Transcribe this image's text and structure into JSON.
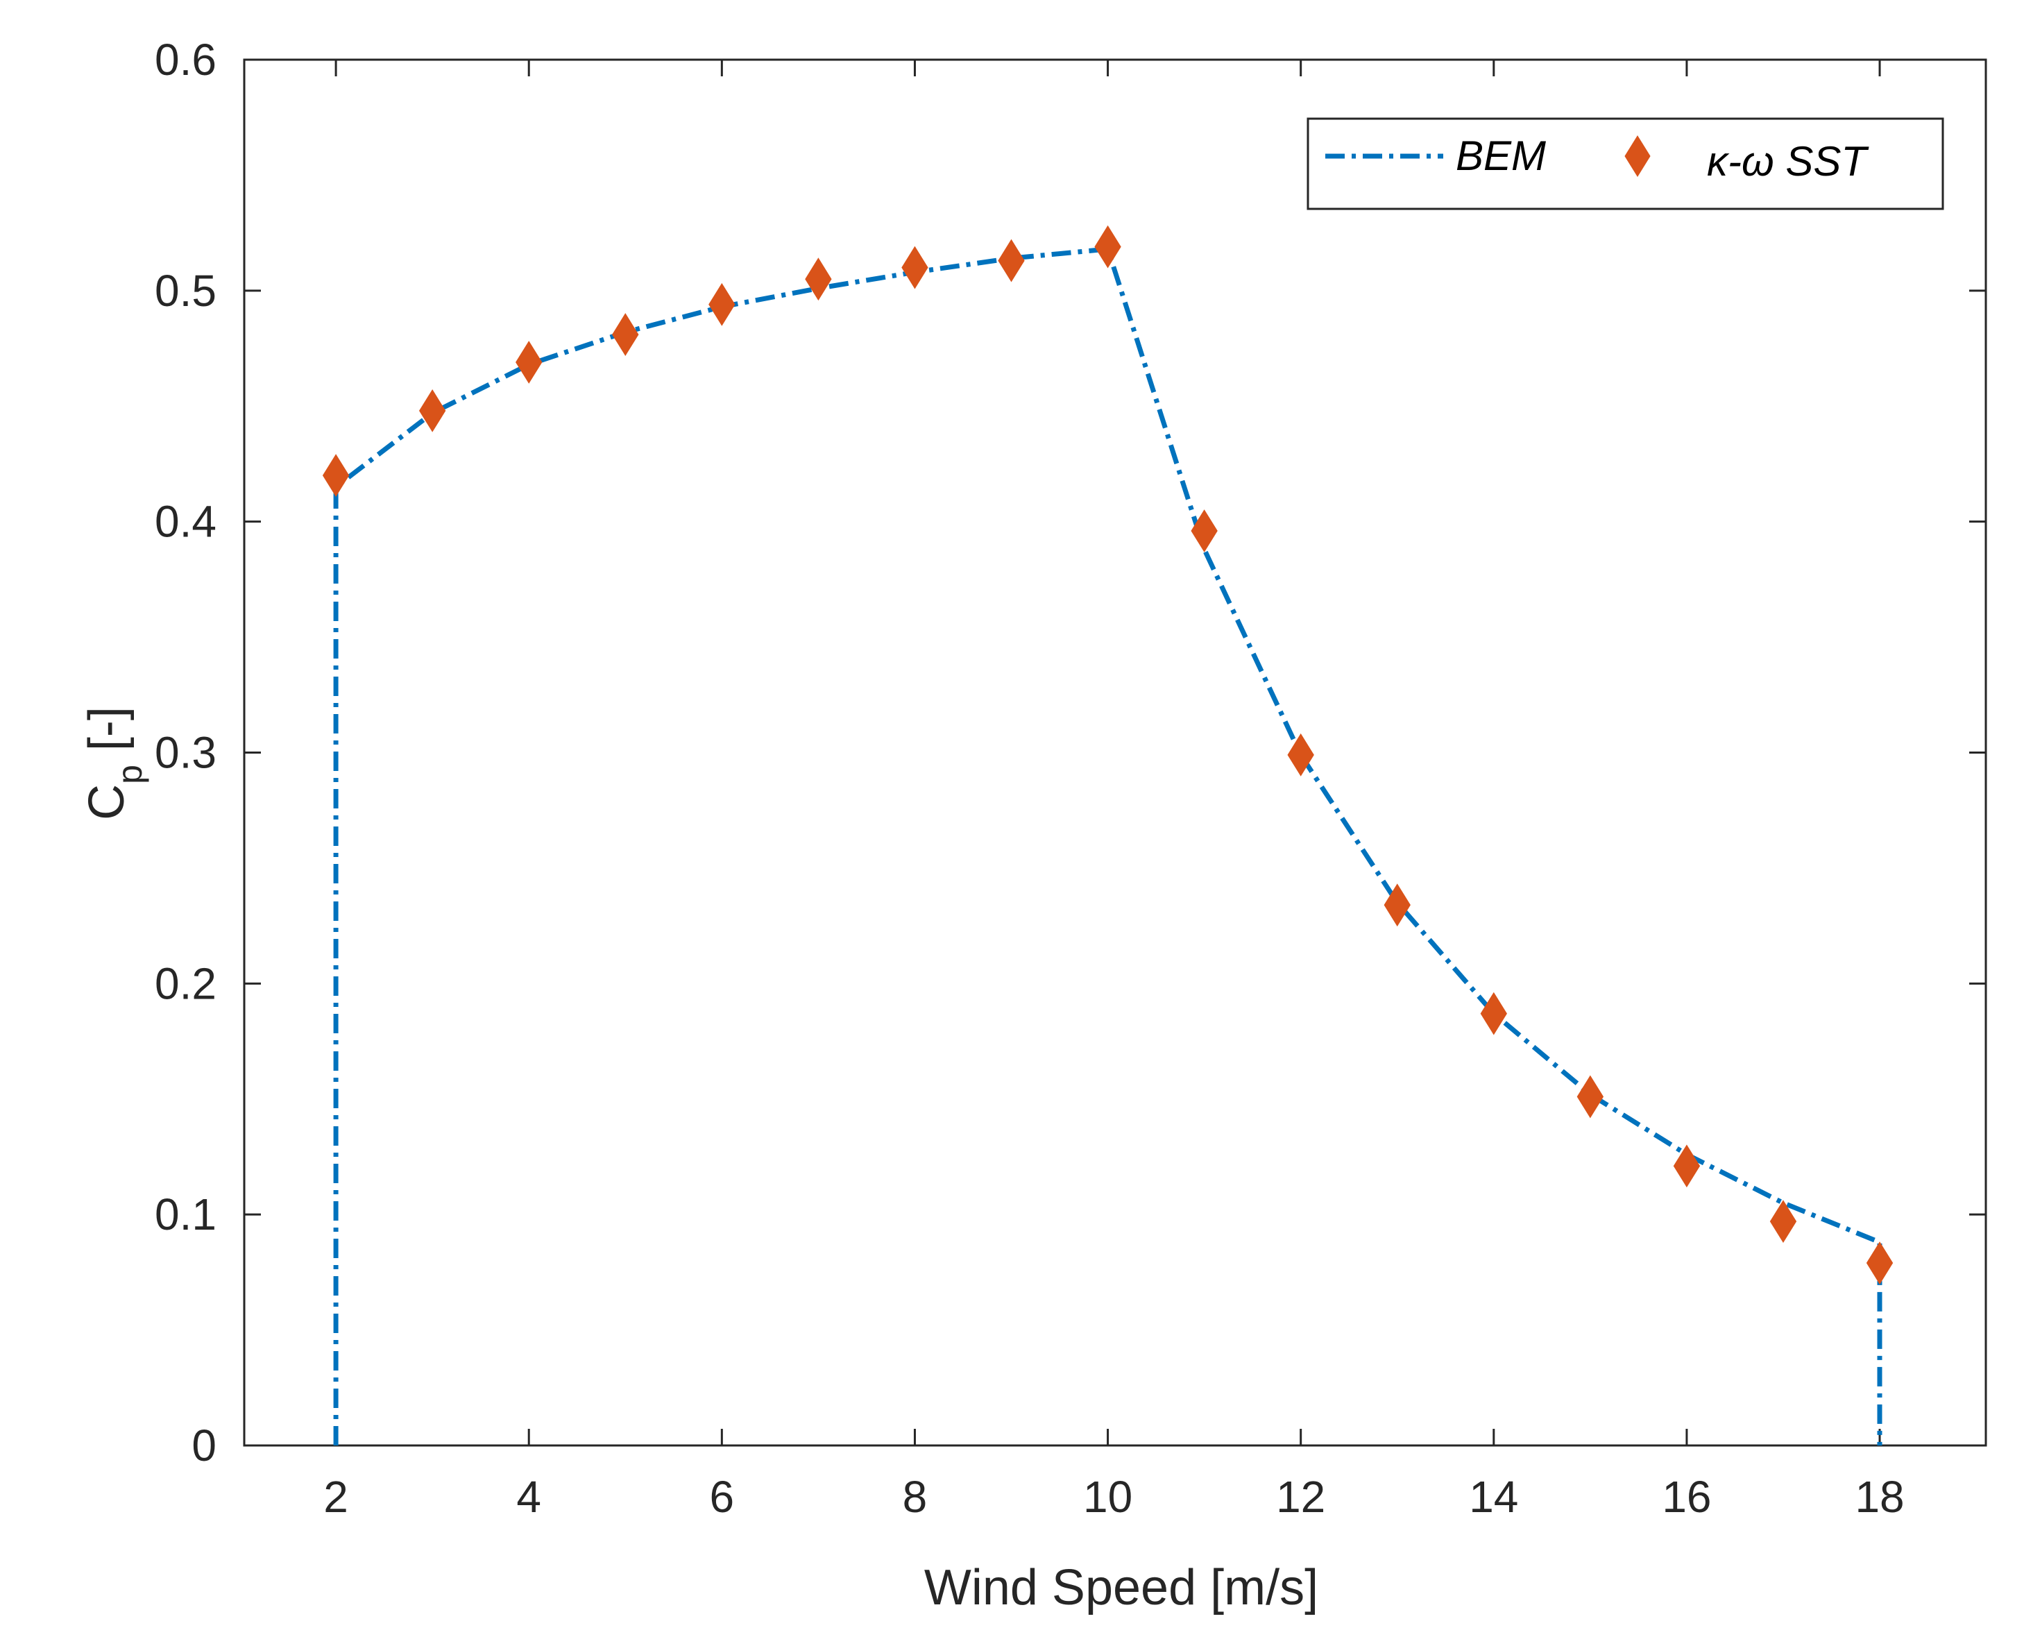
{
  "chart_data": {
    "type": "line",
    "xlabel": "Wind Speed [m/s]",
    "ylabel": {
      "main": "C",
      "subscript": "p",
      "units": "[-]"
    },
    "xlim": [
      1.05,
      19.1
    ],
    "ylim": [
      0,
      0.6
    ],
    "xticks": [
      2,
      4,
      6,
      8,
      10,
      12,
      14,
      16,
      18
    ],
    "xtick_labels": [
      "2",
      "4",
      "6",
      "8",
      "10",
      "12",
      "14",
      "16",
      "18"
    ],
    "yticks": [
      0,
      0.1,
      0.2,
      0.3,
      0.4,
      0.5,
      0.6
    ],
    "ytick_labels": [
      "0",
      "0.1",
      "0.2",
      "0.3",
      "0.4",
      "0.5",
      "0.6"
    ],
    "grid": false,
    "legend_position": "top-right",
    "series": [
      {
        "name": "BEM",
        "style": "dash-dot line",
        "color": "#0072BD",
        "x": [
          2,
          2,
          3,
          4,
          5,
          6,
          7,
          8,
          9,
          10,
          11,
          12,
          13,
          14,
          15,
          16,
          17,
          18,
          18
        ],
        "y": [
          0,
          0.415,
          0.447,
          0.468,
          0.482,
          0.493,
          0.501,
          0.508,
          0.514,
          0.518,
          0.388,
          0.299,
          0.235,
          0.187,
          0.152,
          0.126,
          0.105,
          0.088,
          0
        ]
      },
      {
        "name": "κ-ω SST",
        "style": "diamond markers",
        "color": "#D95319",
        "x": [
          2,
          3,
          4,
          5,
          6,
          7,
          8,
          9,
          10,
          11,
          12,
          13,
          14,
          15,
          16,
          17,
          18
        ],
        "y": [
          0.42,
          0.448,
          0.469,
          0.481,
          0.494,
          0.505,
          0.51,
          0.513,
          0.519,
          0.396,
          0.299,
          0.234,
          0.187,
          0.151,
          0.121,
          0.097,
          0.079
        ]
      }
    ]
  }
}
